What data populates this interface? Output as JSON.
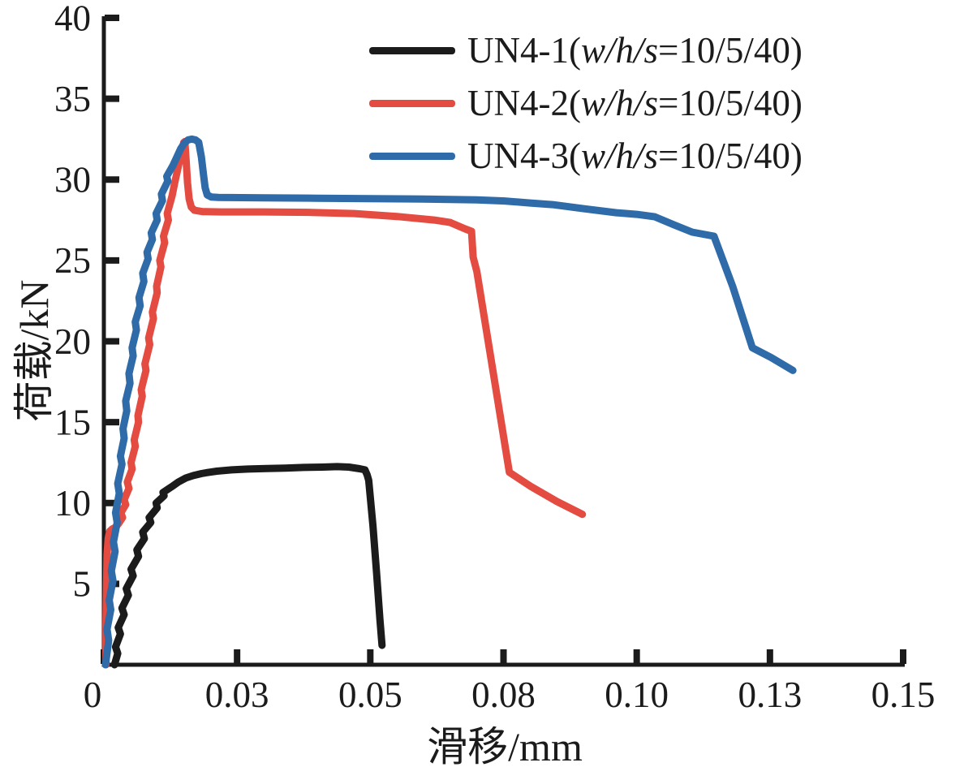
{
  "chart_data": {
    "type": "line",
    "title": "",
    "xlabel": "滑移/mm",
    "ylabel": "荷载/kN",
    "xlim": [
      0,
      0.15
    ],
    "ylim": [
      0,
      40
    ],
    "grid": false,
    "background": "#ffffff",
    "axis_color": "#1b1b1b",
    "legend_position": "top-right-inside",
    "x_ticks": {
      "values": [
        0,
        0.025,
        0.05,
        0.075,
        0.1,
        0.125,
        0.15
      ],
      "labels": [
        "0",
        "0.03",
        "0.05",
        "0.08",
        "0.10",
        "0.13",
        "0.15"
      ]
    },
    "y_ticks": {
      "values": [
        5,
        10,
        15,
        20,
        25,
        30,
        35,
        40
      ],
      "labels": [
        "5",
        "10",
        "15",
        "20",
        "25",
        "30",
        "35",
        "40"
      ]
    },
    "series": [
      {
        "name": "UN4-1(w/h/s=10/5/40)",
        "label_prefix": "UN4-1(",
        "label_italic": "w/h/s",
        "label_suffix": "=10/5/40)",
        "color": "#1b1b1b",
        "line_width": 9,
        "peak_load_kN": 12.25,
        "points": [
          [
            0.002,
            0.0
          ],
          [
            0.0026,
            0.7
          ],
          [
            0.0022,
            1.1
          ],
          [
            0.0031,
            1.9
          ],
          [
            0.0027,
            2.3
          ],
          [
            0.0038,
            3.1
          ],
          [
            0.0034,
            3.5
          ],
          [
            0.0046,
            4.3
          ],
          [
            0.0042,
            4.7
          ],
          [
            0.0055,
            5.5
          ],
          [
            0.0051,
            5.9
          ],
          [
            0.0065,
            6.7
          ],
          [
            0.0062,
            7.1
          ],
          [
            0.0076,
            7.8
          ],
          [
            0.0073,
            8.2
          ],
          [
            0.0088,
            8.8
          ],
          [
            0.0085,
            9.1
          ],
          [
            0.01,
            9.7
          ],
          [
            0.0098,
            10.0
          ],
          [
            0.0113,
            10.45
          ],
          [
            0.0111,
            10.65
          ],
          [
            0.0127,
            11.0
          ],
          [
            0.014,
            11.3
          ],
          [
            0.0154,
            11.55
          ],
          [
            0.0168,
            11.7
          ],
          [
            0.0183,
            11.82
          ],
          [
            0.0197,
            11.9
          ],
          [
            0.0212,
            11.97
          ],
          [
            0.024,
            12.05
          ],
          [
            0.027,
            12.1
          ],
          [
            0.0305,
            12.13
          ],
          [
            0.034,
            12.16
          ],
          [
            0.0375,
            12.2
          ],
          [
            0.041,
            12.22
          ],
          [
            0.0438,
            12.25
          ],
          [
            0.046,
            12.22
          ],
          [
            0.048,
            12.12
          ],
          [
            0.049,
            12.05
          ],
          [
            0.0494,
            11.75
          ],
          [
            0.0497,
            11.4
          ],
          [
            0.0505,
            8.6
          ],
          [
            0.0512,
            5.6
          ],
          [
            0.0518,
            2.8
          ],
          [
            0.0522,
            1.2
          ]
        ]
      },
      {
        "name": "UN4-2(w/h/s=10/5/40)",
        "label_prefix": "UN4-2(",
        "label_italic": "w/h/s",
        "label_suffix": "=10/5/40)",
        "color": "#e44b41",
        "line_width": 9,
        "peak_load_kN": 32.35,
        "points": [
          [
            0.0004,
            0.0
          ],
          [
            0.0004,
            2.5
          ],
          [
            0.0005,
            5.0
          ],
          [
            0.0006,
            6.8
          ],
          [
            0.0008,
            7.8
          ],
          [
            0.0011,
            8.25
          ],
          [
            0.0016,
            8.4
          ],
          [
            0.0022,
            8.5
          ],
          [
            0.0028,
            8.75
          ],
          [
            0.0035,
            9.1
          ],
          [
            0.0032,
            9.4
          ],
          [
            0.0041,
            9.9
          ],
          [
            0.0038,
            10.2
          ],
          [
            0.0047,
            10.9
          ],
          [
            0.0044,
            11.3
          ],
          [
            0.0053,
            12.1
          ],
          [
            0.0051,
            12.5
          ],
          [
            0.0059,
            13.5
          ],
          [
            0.0057,
            13.9
          ],
          [
            0.0065,
            15.0
          ],
          [
            0.0064,
            15.4
          ],
          [
            0.0072,
            16.6
          ],
          [
            0.007,
            17.0
          ],
          [
            0.0079,
            18.2
          ],
          [
            0.0077,
            18.6
          ],
          [
            0.0086,
            19.8
          ],
          [
            0.0084,
            20.2
          ],
          [
            0.0093,
            21.4
          ],
          [
            0.0091,
            21.8
          ],
          [
            0.01,
            23.0
          ],
          [
            0.0099,
            23.4
          ],
          [
            0.0107,
            24.6
          ],
          [
            0.0105,
            25.0
          ],
          [
            0.0114,
            26.1
          ],
          [
            0.0112,
            26.5
          ],
          [
            0.0121,
            27.5
          ],
          [
            0.0119,
            27.9
          ],
          [
            0.0128,
            29.0
          ],
          [
            0.0133,
            29.8
          ],
          [
            0.0139,
            30.7
          ],
          [
            0.0145,
            31.6
          ],
          [
            0.015,
            32.3
          ],
          [
            0.0152,
            32.35
          ],
          [
            0.0154,
            31.4
          ],
          [
            0.0157,
            29.8
          ],
          [
            0.016,
            28.8
          ],
          [
            0.0164,
            28.3
          ],
          [
            0.017,
            28.1
          ],
          [
            0.0185,
            28.02
          ],
          [
            0.022,
            28.0
          ],
          [
            0.03,
            28.0
          ],
          [
            0.039,
            27.97
          ],
          [
            0.047,
            27.9
          ],
          [
            0.055,
            27.72
          ],
          [
            0.062,
            27.5
          ],
          [
            0.065,
            27.35
          ],
          [
            0.0678,
            26.95
          ],
          [
            0.069,
            26.8
          ],
          [
            0.0693,
            25.2
          ],
          [
            0.07,
            24.3
          ],
          [
            0.073,
            18.2
          ],
          [
            0.0761,
            11.9
          ],
          [
            0.08,
            11.05
          ],
          [
            0.085,
            10.1
          ],
          [
            0.0898,
            9.3
          ]
        ]
      },
      {
        "name": "UN4-3(w/h/s=10/5/40)",
        "label_prefix": "UN4-3(",
        "label_italic": "w/h/s",
        "label_suffix": "=10/5/40)",
        "color": "#2e6ba8",
        "line_width": 9,
        "peak_load_kN": 32.5,
        "points": [
          [
            0.0003,
            0.0
          ],
          [
            0.0009,
            1.5
          ],
          [
            0.0006,
            2.2
          ],
          [
            0.0013,
            3.4
          ],
          [
            0.001,
            4.0
          ],
          [
            0.0017,
            5.2
          ],
          [
            0.0014,
            5.8
          ],
          [
            0.0021,
            7.0
          ],
          [
            0.0018,
            7.6
          ],
          [
            0.0025,
            8.8
          ],
          [
            0.0022,
            9.4
          ],
          [
            0.0029,
            10.6
          ],
          [
            0.0026,
            11.2
          ],
          [
            0.0034,
            12.4
          ],
          [
            0.0031,
            12.9
          ],
          [
            0.0038,
            14.0
          ],
          [
            0.0036,
            14.6
          ],
          [
            0.0043,
            15.7
          ],
          [
            0.0041,
            16.3
          ],
          [
            0.0049,
            17.4
          ],
          [
            0.0047,
            18.0
          ],
          [
            0.0055,
            19.1
          ],
          [
            0.0053,
            19.6
          ],
          [
            0.0061,
            20.7
          ],
          [
            0.0059,
            21.2
          ],
          [
            0.0068,
            22.2
          ],
          [
            0.0066,
            22.7
          ],
          [
            0.0075,
            23.7
          ],
          [
            0.0073,
            24.2
          ],
          [
            0.0083,
            25.1
          ],
          [
            0.0081,
            25.5
          ],
          [
            0.0091,
            26.3
          ],
          [
            0.0089,
            26.7
          ],
          [
            0.01,
            27.5
          ],
          [
            0.0098,
            27.9
          ],
          [
            0.011,
            28.7
          ],
          [
            0.0108,
            29.1
          ],
          [
            0.012,
            29.9
          ],
          [
            0.0118,
            30.2
          ],
          [
            0.013,
            30.9
          ],
          [
            0.0137,
            31.4
          ],
          [
            0.0144,
            31.9
          ],
          [
            0.0151,
            32.25
          ],
          [
            0.0158,
            32.45
          ],
          [
            0.0165,
            32.5
          ],
          [
            0.0172,
            32.45
          ],
          [
            0.0178,
            32.3
          ],
          [
            0.0183,
            31.4
          ],
          [
            0.0187,
            30.3
          ],
          [
            0.019,
            29.5
          ],
          [
            0.0194,
            29.05
          ],
          [
            0.0202,
            28.92
          ],
          [
            0.0215,
            28.9
          ],
          [
            0.03,
            28.87
          ],
          [
            0.04,
            28.85
          ],
          [
            0.05,
            28.82
          ],
          [
            0.06,
            28.8
          ],
          [
            0.07,
            28.75
          ],
          [
            0.0752,
            28.68
          ],
          [
            0.08,
            28.55
          ],
          [
            0.0842,
            28.45
          ],
          [
            0.09,
            28.2
          ],
          [
            0.0962,
            27.95
          ],
          [
            0.1,
            27.85
          ],
          [
            0.1034,
            27.7
          ],
          [
            0.107,
            27.2
          ],
          [
            0.1104,
            26.75
          ],
          [
            0.1145,
            26.5
          ],
          [
            0.118,
            23.4
          ],
          [
            0.1217,
            19.6
          ],
          [
            0.1252,
            19.0
          ],
          [
            0.1293,
            18.2
          ]
        ]
      }
    ]
  }
}
